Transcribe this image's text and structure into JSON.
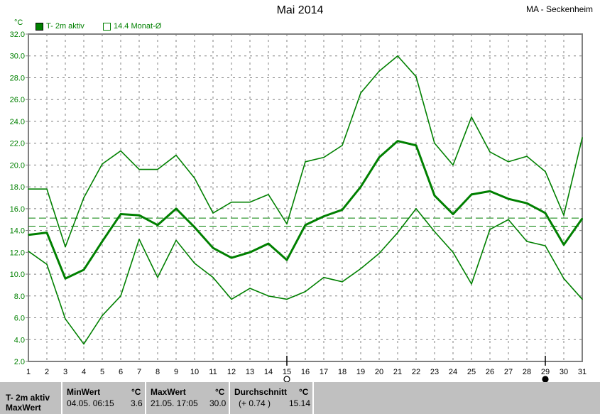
{
  "header": {
    "title": "Mai 2014",
    "station": "MA - Seckenheim"
  },
  "chart_data": {
    "type": "line",
    "title": "Mai 2014",
    "ylabel": "°C",
    "ylim": [
      2.0,
      32.0
    ],
    "yticks": [
      "2.0",
      "4.0",
      "6.0",
      "8.0",
      "10.0",
      "12.0",
      "14.0",
      "16.0",
      "18.0",
      "20.0",
      "22.0",
      "24.0",
      "26.0",
      "28.0",
      "30.0",
      "32.0"
    ],
    "x": [
      1,
      2,
      3,
      4,
      5,
      6,
      7,
      8,
      9,
      10,
      11,
      12,
      13,
      14,
      15,
      16,
      17,
      18,
      19,
      20,
      21,
      22,
      23,
      24,
      25,
      26,
      27,
      28,
      29,
      30,
      31
    ],
    "grid": true,
    "legend": {
      "placement": "top-left",
      "items": [
        {
          "label": "T- 2m aktiv",
          "color": "#008000",
          "filled": true
        },
        {
          "label": "14.4 Monat-Ø",
          "color": "#008000",
          "filled": false
        }
      ]
    },
    "series": [
      {
        "role": "max",
        "values": [
          17.8,
          17.8,
          12.5,
          17.0,
          20.1,
          21.3,
          19.6,
          19.6,
          20.9,
          18.8,
          15.6,
          16.6,
          16.6,
          17.3,
          14.6,
          20.3,
          20.7,
          21.8,
          26.6,
          28.6,
          30.0,
          28.1,
          22.0,
          20.0,
          24.4,
          21.2,
          20.3,
          20.8,
          19.4,
          15.4,
          22.5
        ]
      },
      {
        "role": "mean",
        "name": "T- 2m aktiv",
        "values": [
          13.6,
          13.8,
          9.6,
          10.4,
          13.0,
          15.5,
          15.4,
          14.5,
          16.0,
          14.3,
          12.4,
          11.5,
          12.0,
          12.8,
          11.3,
          14.5,
          15.3,
          15.9,
          18.0,
          20.7,
          22.2,
          21.8,
          17.2,
          15.5,
          17.3,
          17.6,
          16.9,
          16.5,
          15.6,
          12.7,
          15.1
        ]
      },
      {
        "role": "min",
        "values": [
          12.1,
          10.9,
          5.9,
          3.6,
          6.2,
          8.0,
          13.2,
          9.7,
          13.1,
          11.0,
          9.7,
          7.7,
          8.7,
          8.0,
          7.7,
          8.4,
          9.7,
          9.3,
          10.5,
          11.9,
          13.8,
          16.0,
          13.9,
          12.0,
          9.1,
          14.1,
          15.0,
          13.0,
          12.6,
          9.6,
          7.7
        ]
      }
    ],
    "reference_lines": [
      {
        "value": 15.14,
        "style": "dashed"
      },
      {
        "value": 14.4,
        "name": "14.4 Monat-Ø",
        "style": "dashed"
      }
    ],
    "moon_phases": [
      {
        "day": 15,
        "phase": "full-moon"
      },
      {
        "day": 29,
        "phase": "new-moon"
      }
    ],
    "color": "#008000"
  },
  "stats": {
    "row_label": "T- 2m aktiv",
    "row2_label": "MaxWert",
    "min": {
      "header": "MinWert",
      "unit": "°C",
      "time": "04.05.  06:15",
      "value": "3.6"
    },
    "max": {
      "header": "MaxWert",
      "unit": "°C",
      "time": "21.05.  17:05",
      "value": "30.0"
    },
    "avg": {
      "header": "Durchschnitt",
      "unit": "°C",
      "delta": "(+ 0.74 )",
      "value": "15.14"
    }
  }
}
